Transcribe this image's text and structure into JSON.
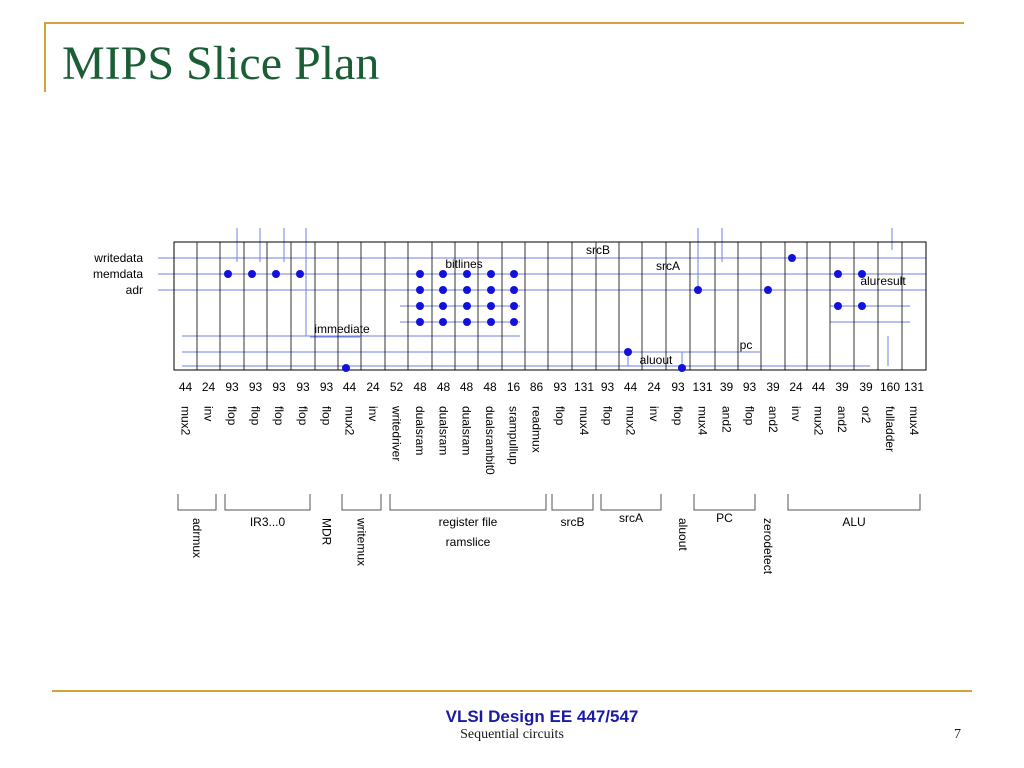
{
  "slide": {
    "title": "MIPS Slice Plan",
    "course": "VLSI Design EE 447/547",
    "subtitle": "Sequential circuits",
    "slide_number": "7"
  },
  "diagram": {
    "cells": [
      {
        "name": "mux2",
        "width": "44"
      },
      {
        "name": "inv",
        "width": "24"
      },
      {
        "name": "flop",
        "width": "93"
      },
      {
        "name": "flop",
        "width": "93"
      },
      {
        "name": "flop",
        "width": "93"
      },
      {
        "name": "flop",
        "width": "93"
      },
      {
        "name": "flop",
        "width": "93"
      },
      {
        "name": "mux2",
        "width": "44"
      },
      {
        "name": "inv",
        "width": "24"
      },
      {
        "name": "writedriver",
        "width": "52"
      },
      {
        "name": "dualsram",
        "width": "48"
      },
      {
        "name": "dualsram",
        "width": "48"
      },
      {
        "name": "dualsram",
        "width": "48"
      },
      {
        "name": "dualsrambit0",
        "width": "48"
      },
      {
        "name": "srampullup",
        "width": "16"
      },
      {
        "name": "readmux",
        "width": "86"
      },
      {
        "name": "flop",
        "width": "93"
      },
      {
        "name": "mux4",
        "width": "131"
      },
      {
        "name": "flop",
        "width": "93"
      },
      {
        "name": "mux2",
        "width": "44"
      },
      {
        "name": "inv",
        "width": "24"
      },
      {
        "name": "flop",
        "width": "93"
      },
      {
        "name": "mux4",
        "width": "131"
      },
      {
        "name": "and2",
        "width": "39"
      },
      {
        "name": "flop",
        "width": "93"
      },
      {
        "name": "and2",
        "width": "39"
      },
      {
        "name": "inv",
        "width": "24"
      },
      {
        "name": "mux2",
        "width": "44"
      },
      {
        "name": "and2",
        "width": "39"
      },
      {
        "name": "or2",
        "width": "39"
      },
      {
        "name": "fulladder",
        "width": "160"
      },
      {
        "name": "mux4",
        "width": "131"
      }
    ],
    "row_labels": [
      "writedata",
      "memdata",
      "adr"
    ],
    "bus_labels": [
      "srcB",
      "bitlines",
      "srcA",
      "aluresult",
      "immediate",
      "pc",
      "aluout"
    ],
    "groups": [
      {
        "label": "adrmux",
        "orient": "vertical"
      },
      {
        "label": "IR3...0",
        "orient": "horizontal"
      },
      {
        "label": "MDR",
        "orient": "vertical"
      },
      {
        "label": "writemux",
        "orient": "vertical"
      },
      {
        "label": "register file",
        "label2": "ramslice",
        "orient": "horizontal"
      },
      {
        "label": "srcB",
        "orient": "horizontal"
      },
      {
        "label": "srcA",
        "orient": "horizontal"
      },
      {
        "label": "aluout",
        "orient": "vertical"
      },
      {
        "label": "PC",
        "orient": "horizontal"
      },
      {
        "label": "zerodetect",
        "orient": "vertical"
      },
      {
        "label": "ALU",
        "orient": "horizontal"
      }
    ]
  }
}
